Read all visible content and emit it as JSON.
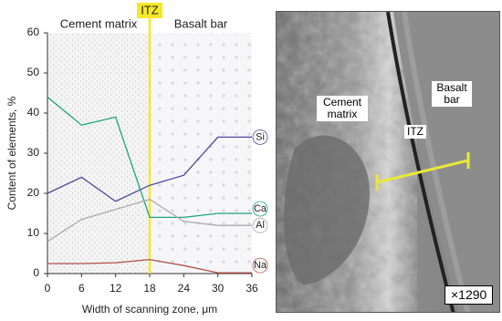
{
  "chart_data": {
    "type": "line",
    "x": [
      0,
      6,
      12,
      18,
      24,
      30,
      36
    ],
    "xlim": [
      0,
      36
    ],
    "xticks": [
      0,
      6,
      12,
      18,
      24,
      30,
      36
    ],
    "ylim": [
      0,
      60
    ],
    "yticks": [
      0,
      10,
      20,
      30,
      40,
      50,
      60
    ],
    "xlabel": "Width of scanning zone, μm",
    "ylabel": "Content of elements, %",
    "regions": [
      {
        "label": "Cement matrix",
        "x": [
          0,
          18
        ]
      },
      {
        "label": "Basalt bar",
        "x": [
          18,
          36
        ]
      }
    ],
    "marker": {
      "label": "ITZ",
      "x": 18,
      "color": "#f5e82a"
    },
    "series": [
      {
        "name": "Si",
        "color": "#4b4b9e",
        "values": [
          20,
          24,
          18,
          22,
          24.5,
          34,
          34
        ]
      },
      {
        "name": "Ca",
        "color": "#1fa37a",
        "values": [
          44,
          37,
          39,
          14,
          14,
          15,
          15
        ]
      },
      {
        "name": "Al",
        "color": "#aaaaaa",
        "values": [
          8,
          13.5,
          16,
          18.5,
          13,
          12,
          12
        ]
      },
      {
        "name": "Na",
        "color": "#b5524a",
        "values": [
          2.5,
          2.5,
          2.7,
          3.5,
          2,
          0.2,
          0.2
        ]
      }
    ]
  },
  "image": {
    "labels": [
      "Cement matrix",
      "ITZ",
      "Basalt bar"
    ],
    "magnification": "×1290"
  }
}
